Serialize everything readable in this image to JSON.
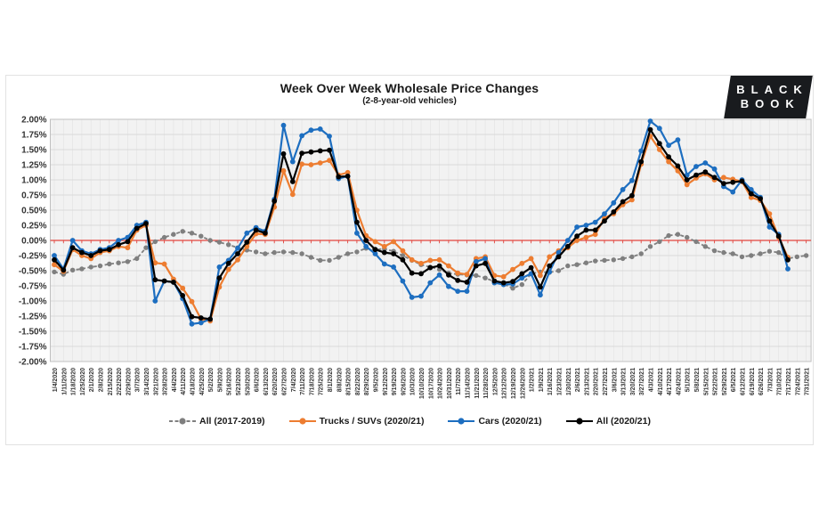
{
  "header": {
    "title": "Week Over Week Wholesale Price Changes",
    "subtitle": "(2-8-year-old vehicles)"
  },
  "logo": {
    "line1": "BLACK",
    "line2": "BOOK"
  },
  "colors": {
    "plot_bg": "#f2f2f2",
    "grid_h": "#d9d9d9",
    "grid_v": "#e4e4e4",
    "plot_border": "#c0c0c0",
    "zero_line": "#e2453e",
    "axis_text": "#333333"
  },
  "chart_data": {
    "type": "line",
    "title": "Week Over Week Wholesale Price Changes",
    "subtitle": "(2-8-year-old vehicles)",
    "ylabel": "",
    "xlabel": "",
    "ylim": [
      -2.0,
      2.0
    ],
    "y_tick_step": 0.25,
    "grid": true,
    "legend_position": "bottom",
    "zero_line_color": "#e2453e",
    "y_tick_labels": [
      "2.00%",
      "1.75%",
      "1.50%",
      "1.25%",
      "1.00%",
      "0.75%",
      "0.50%",
      "0.25%",
      "0.00%",
      "-0.25%",
      "-0.50%",
      "-0.75%",
      "-1.00%",
      "-1.25%",
      "-1.50%",
      "-1.75%",
      "-2.00%"
    ],
    "x": [
      "1/4/2020",
      "1/11/2020",
      "1/18/2020",
      "1/25/2020",
      "2/1/2020",
      "2/8/2020",
      "2/15/2020",
      "2/22/2020",
      "2/29/2020",
      "3/7/2020",
      "3/14/2020",
      "3/21/2020",
      "3/28/2020",
      "4/4/2020",
      "4/11/2020",
      "4/18/2020",
      "4/25/2020",
      "5/2/2020",
      "5/9/2020",
      "5/16/2020",
      "5/23/2020",
      "5/30/2020",
      "6/6/2020",
      "6/13/2020",
      "6/20/2020",
      "6/27/2020",
      "7/4/2020",
      "7/11/2020",
      "7/18/2020",
      "7/25/2020",
      "8/1/2020",
      "8/8/2020",
      "8/15/2020",
      "8/22/2020",
      "8/29/2020",
      "9/5/2020",
      "9/12/2020",
      "9/19/2020",
      "9/26/2020",
      "10/3/2020",
      "10/10/2020",
      "10/17/2020",
      "10/24/2020",
      "10/31/2020",
      "11/7/2020",
      "11/14/2020",
      "11/21/2020",
      "11/28/2020",
      "12/5/2020",
      "12/12/2020",
      "12/19/2020",
      "12/26/2020",
      "1/2/2021",
      "1/9/2021",
      "1/16/2021",
      "1/23/2021",
      "1/30/2021",
      "2/6/2021",
      "2/13/2021",
      "2/20/2021",
      "2/27/2021",
      "3/6/2021",
      "3/13/2021",
      "3/20/2021",
      "3/27/2021",
      "4/3/2021",
      "4/10/2021",
      "4/17/2021",
      "4/24/2021",
      "5/1/2021",
      "5/8/2021",
      "5/15/2021",
      "5/22/2021",
      "5/29/2021",
      "6/5/2021",
      "6/12/2021",
      "6/19/2021",
      "6/26/2021",
      "7/3/2021",
      "7/10/2021",
      "7/17/2021",
      "7/24/2021",
      "7/31/2021"
    ],
    "series": [
      {
        "name": "All (2017-2019)",
        "color": "#7f7f7f",
        "dash": "dashed",
        "values": [
          -0.52,
          -0.56,
          -0.49,
          -0.47,
          -0.44,
          -0.42,
          -0.39,
          -0.37,
          -0.35,
          -0.3,
          -0.12,
          -0.02,
          0.05,
          0.1,
          0.15,
          0.12,
          0.07,
          0.0,
          -0.03,
          -0.07,
          -0.12,
          -0.16,
          -0.19,
          -0.22,
          -0.2,
          -0.19,
          -0.2,
          -0.22,
          -0.28,
          -0.33,
          -0.33,
          -0.28,
          -0.22,
          -0.19,
          -0.13,
          -0.15,
          -0.14,
          -0.18,
          -0.25,
          -0.33,
          -0.4,
          -0.44,
          -0.48,
          -0.54,
          -0.56,
          -0.57,
          -0.58,
          -0.62,
          -0.68,
          -0.72,
          -0.79,
          -0.73,
          -0.55,
          -0.52,
          -0.53,
          -0.5,
          -0.42,
          -0.4,
          -0.37,
          -0.34,
          -0.33,
          -0.32,
          -0.3,
          -0.27,
          -0.22,
          -0.1,
          -0.02,
          0.08,
          0.1,
          0.05,
          -0.02,
          -0.1,
          -0.17,
          -0.2,
          -0.22,
          -0.27,
          -0.25,
          -0.22,
          -0.18,
          -0.2,
          -0.3,
          -0.27,
          -0.25
        ]
      },
      {
        "name": "Trucks / SUVs (2020/21)",
        "color": "#ed7d31",
        "dash": "solid",
        "values": [
          -0.4,
          -0.51,
          -0.15,
          -0.25,
          -0.3,
          -0.2,
          -0.17,
          -0.1,
          -0.12,
          0.17,
          0.25,
          -0.37,
          -0.39,
          -0.64,
          -0.79,
          -1.01,
          -1.3,
          -1.33,
          -0.77,
          -0.48,
          -0.32,
          -0.1,
          0.11,
          0.1,
          0.55,
          1.15,
          0.76,
          1.26,
          1.25,
          1.28,
          1.32,
          1.08,
          1.12,
          0.5,
          0.08,
          -0.02,
          -0.1,
          -0.02,
          -0.17,
          -0.32,
          -0.38,
          -0.33,
          -0.32,
          -0.42,
          -0.54,
          -0.56,
          -0.3,
          -0.27,
          -0.58,
          -0.6,
          -0.48,
          -0.38,
          -0.3,
          -0.58,
          -0.27,
          -0.17,
          -0.12,
          0.0,
          0.05,
          0.1,
          0.37,
          0.44,
          0.59,
          0.67,
          1.26,
          1.72,
          1.5,
          1.3,
          1.15,
          0.92,
          1.03,
          1.1,
          1.0,
          1.04,
          1.01,
          0.97,
          0.71,
          0.66,
          0.44,
          0.05,
          -0.28,
          null,
          null
        ]
      },
      {
        "name": "Cars (2020/21)",
        "color": "#1d6ec0",
        "dash": "solid",
        "values": [
          -0.25,
          -0.47,
          0.0,
          -0.17,
          -0.22,
          -0.15,
          -0.12,
          0.0,
          0.05,
          0.25,
          0.3,
          -1.0,
          -0.67,
          -0.69,
          -0.96,
          -1.38,
          -1.36,
          -1.3,
          -0.44,
          -0.33,
          -0.13,
          0.12,
          0.21,
          0.15,
          0.68,
          1.9,
          1.3,
          1.73,
          1.82,
          1.84,
          1.72,
          1.02,
          1.06,
          0.12,
          -0.1,
          -0.22,
          -0.39,
          -0.44,
          -0.67,
          -0.94,
          -0.92,
          -0.7,
          -0.57,
          -0.76,
          -0.84,
          -0.84,
          -0.35,
          -0.3,
          -0.7,
          -0.73,
          -0.72,
          -0.62,
          -0.55,
          -0.9,
          -0.52,
          -0.2,
          0.0,
          0.22,
          0.25,
          0.3,
          0.44,
          0.62,
          0.84,
          0.99,
          1.48,
          1.97,
          1.85,
          1.57,
          1.66,
          1.08,
          1.22,
          1.28,
          1.18,
          0.89,
          0.8,
          1.0,
          0.84,
          0.71,
          0.22,
          0.1,
          -0.47,
          null,
          null
        ]
      },
      {
        "name": "All (2020/21)",
        "color": "#000000",
        "dash": "solid",
        "values": [
          -0.32,
          -0.49,
          -0.12,
          -0.2,
          -0.25,
          -0.17,
          -0.15,
          -0.07,
          -0.02,
          0.2,
          0.28,
          -0.65,
          -0.67,
          -0.69,
          -0.91,
          -1.26,
          -1.28,
          -1.3,
          -0.62,
          -0.38,
          -0.22,
          -0.03,
          0.17,
          0.12,
          0.65,
          1.43,
          0.97,
          1.44,
          1.46,
          1.48,
          1.49,
          1.05,
          1.06,
          0.3,
          0.0,
          -0.15,
          -0.2,
          -0.22,
          -0.32,
          -0.54,
          -0.55,
          -0.45,
          -0.42,
          -0.57,
          -0.66,
          -0.69,
          -0.42,
          -0.38,
          -0.67,
          -0.7,
          -0.68,
          -0.55,
          -0.45,
          -0.77,
          -0.42,
          -0.27,
          -0.1,
          0.07,
          0.17,
          0.17,
          0.32,
          0.47,
          0.64,
          0.74,
          1.3,
          1.83,
          1.6,
          1.38,
          1.23,
          1.0,
          1.08,
          1.13,
          1.04,
          0.94,
          0.96,
          0.98,
          0.77,
          0.69,
          0.32,
          0.07,
          -0.32,
          null,
          null
        ]
      }
    ]
  }
}
